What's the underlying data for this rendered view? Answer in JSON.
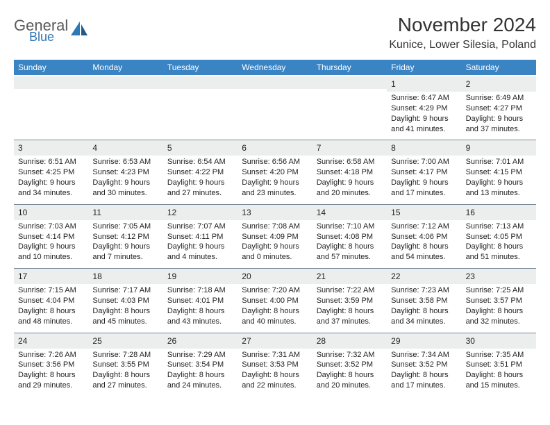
{
  "logo": {
    "text1": "General",
    "text2": "Blue"
  },
  "title": "November 2024",
  "location": "Kunice, Lower Silesia, Poland",
  "colors": {
    "header_bg": "#3a84c4",
    "header_text": "#ffffff",
    "daybar_bg": "#eceded",
    "text": "#222222",
    "logo_gray": "#5a5a5a",
    "logo_blue": "#2f78b8"
  },
  "weekdays": [
    "Sunday",
    "Monday",
    "Tuesday",
    "Wednesday",
    "Thursday",
    "Friday",
    "Saturday"
  ],
  "weeks": [
    [
      null,
      null,
      null,
      null,
      null,
      {
        "n": "1",
        "sunrise": "6:47 AM",
        "sunset": "4:29 PM",
        "daylight": "9 hours and 41 minutes."
      },
      {
        "n": "2",
        "sunrise": "6:49 AM",
        "sunset": "4:27 PM",
        "daylight": "9 hours and 37 minutes."
      }
    ],
    [
      {
        "n": "3",
        "sunrise": "6:51 AM",
        "sunset": "4:25 PM",
        "daylight": "9 hours and 34 minutes."
      },
      {
        "n": "4",
        "sunrise": "6:53 AM",
        "sunset": "4:23 PM",
        "daylight": "9 hours and 30 minutes."
      },
      {
        "n": "5",
        "sunrise": "6:54 AM",
        "sunset": "4:22 PM",
        "daylight": "9 hours and 27 minutes."
      },
      {
        "n": "6",
        "sunrise": "6:56 AM",
        "sunset": "4:20 PM",
        "daylight": "9 hours and 23 minutes."
      },
      {
        "n": "7",
        "sunrise": "6:58 AM",
        "sunset": "4:18 PM",
        "daylight": "9 hours and 20 minutes."
      },
      {
        "n": "8",
        "sunrise": "7:00 AM",
        "sunset": "4:17 PM",
        "daylight": "9 hours and 17 minutes."
      },
      {
        "n": "9",
        "sunrise": "7:01 AM",
        "sunset": "4:15 PM",
        "daylight": "9 hours and 13 minutes."
      }
    ],
    [
      {
        "n": "10",
        "sunrise": "7:03 AM",
        "sunset": "4:14 PM",
        "daylight": "9 hours and 10 minutes."
      },
      {
        "n": "11",
        "sunrise": "7:05 AM",
        "sunset": "4:12 PM",
        "daylight": "9 hours and 7 minutes."
      },
      {
        "n": "12",
        "sunrise": "7:07 AM",
        "sunset": "4:11 PM",
        "daylight": "9 hours and 4 minutes."
      },
      {
        "n": "13",
        "sunrise": "7:08 AM",
        "sunset": "4:09 PM",
        "daylight": "9 hours and 0 minutes."
      },
      {
        "n": "14",
        "sunrise": "7:10 AM",
        "sunset": "4:08 PM",
        "daylight": "8 hours and 57 minutes."
      },
      {
        "n": "15",
        "sunrise": "7:12 AM",
        "sunset": "4:06 PM",
        "daylight": "8 hours and 54 minutes."
      },
      {
        "n": "16",
        "sunrise": "7:13 AM",
        "sunset": "4:05 PM",
        "daylight": "8 hours and 51 minutes."
      }
    ],
    [
      {
        "n": "17",
        "sunrise": "7:15 AM",
        "sunset": "4:04 PM",
        "daylight": "8 hours and 48 minutes."
      },
      {
        "n": "18",
        "sunrise": "7:17 AM",
        "sunset": "4:03 PM",
        "daylight": "8 hours and 45 minutes."
      },
      {
        "n": "19",
        "sunrise": "7:18 AM",
        "sunset": "4:01 PM",
        "daylight": "8 hours and 43 minutes."
      },
      {
        "n": "20",
        "sunrise": "7:20 AM",
        "sunset": "4:00 PM",
        "daylight": "8 hours and 40 minutes."
      },
      {
        "n": "21",
        "sunrise": "7:22 AM",
        "sunset": "3:59 PM",
        "daylight": "8 hours and 37 minutes."
      },
      {
        "n": "22",
        "sunrise": "7:23 AM",
        "sunset": "3:58 PM",
        "daylight": "8 hours and 34 minutes."
      },
      {
        "n": "23",
        "sunrise": "7:25 AM",
        "sunset": "3:57 PM",
        "daylight": "8 hours and 32 minutes."
      }
    ],
    [
      {
        "n": "24",
        "sunrise": "7:26 AM",
        "sunset": "3:56 PM",
        "daylight": "8 hours and 29 minutes."
      },
      {
        "n": "25",
        "sunrise": "7:28 AM",
        "sunset": "3:55 PM",
        "daylight": "8 hours and 27 minutes."
      },
      {
        "n": "26",
        "sunrise": "7:29 AM",
        "sunset": "3:54 PM",
        "daylight": "8 hours and 24 minutes."
      },
      {
        "n": "27",
        "sunrise": "7:31 AM",
        "sunset": "3:53 PM",
        "daylight": "8 hours and 22 minutes."
      },
      {
        "n": "28",
        "sunrise": "7:32 AM",
        "sunset": "3:52 PM",
        "daylight": "8 hours and 20 minutes."
      },
      {
        "n": "29",
        "sunrise": "7:34 AM",
        "sunset": "3:52 PM",
        "daylight": "8 hours and 17 minutes."
      },
      {
        "n": "30",
        "sunrise": "7:35 AM",
        "sunset": "3:51 PM",
        "daylight": "8 hours and 15 minutes."
      }
    ]
  ],
  "labels": {
    "sunrise": "Sunrise:",
    "sunset": "Sunset:",
    "daylight": "Daylight:"
  }
}
